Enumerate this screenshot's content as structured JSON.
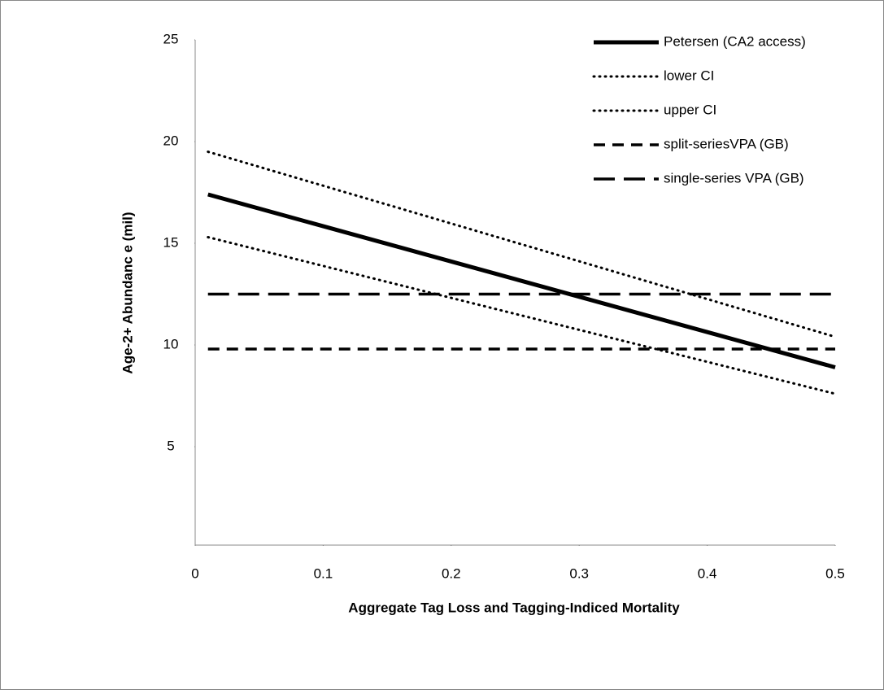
{
  "chart_data": {
    "type": "line",
    "x_label": "Aggregate Tag Loss and Tagging-Indiced Mortality",
    "y_label": "Age-2+ Abundanc e (mil)",
    "x": [
      0.01,
      0.5
    ],
    "series": [
      {
        "name": "Petersen (CA2 access)",
        "color": "#000000",
        "dash": "solid",
        "values": [
          17.4,
          8.9
        ]
      },
      {
        "name": "lower CI",
        "color": "#000000",
        "dash": "dotted",
        "values": [
          15.3,
          7.6
        ]
      },
      {
        "name": "upper CI",
        "color": "#000000",
        "dash": "dotted",
        "values": [
          19.5,
          10.4
        ]
      },
      {
        "name": "split-seriesVPA (GB)",
        "color": "#000000",
        "dash": "dashed",
        "values": [
          9.8,
          9.8
        ]
      },
      {
        "name": "single-series VPA (GB)",
        "color": "#000000",
        "dash": "longdash",
        "values": [
          12.5,
          12.5
        ]
      }
    ],
    "xlim": [
      0,
      0.5
    ],
    "xticks": [
      0,
      0.1,
      0.2,
      0.3,
      0.4,
      0.5
    ],
    "ylim": [
      0,
      25
    ],
    "yticks": [
      5,
      10,
      15,
      20,
      25
    ],
    "grid": false,
    "legend": "top-right"
  }
}
